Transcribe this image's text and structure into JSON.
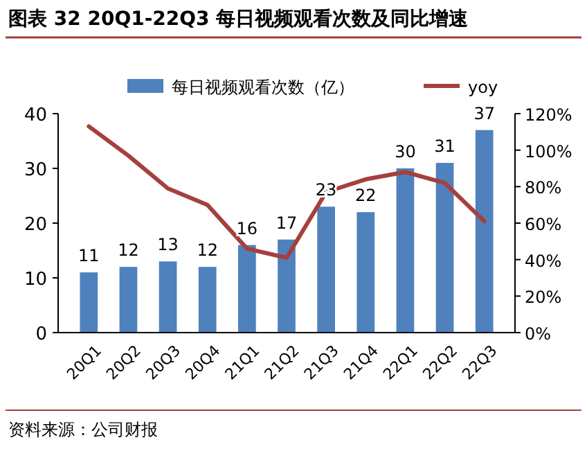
{
  "chart_data": {
    "type": "bar",
    "title": "图表 32 20Q1-22Q3 每日视频观看次数及同比增速",
    "categories": [
      "20Q1",
      "20Q2",
      "20Q3",
      "20Q4",
      "21Q1",
      "21Q2",
      "21Q3",
      "21Q4",
      "22Q1",
      "22Q2",
      "22Q3"
    ],
    "series": [
      {
        "name": "每日视频观看次数（亿）",
        "color": "#4f81bd",
        "values": [
          11,
          12,
          13,
          12,
          16,
          17,
          23,
          22,
          30,
          31,
          37
        ],
        "value_labels": [
          "11",
          "12",
          "13",
          "12",
          "16",
          "17",
          "23",
          "22",
          "30",
          "31",
          "37"
        ]
      },
      {
        "name": "yoy",
        "type": "line",
        "axis": "y2",
        "color": "#a5403d",
        "values": [
          113,
          97,
          79,
          70,
          46,
          41,
          77,
          84,
          88,
          82,
          61
        ]
      }
    ],
    "ylim": [
      0,
      40
    ],
    "yticks": [
      0,
      10,
      20,
      30,
      40
    ],
    "y2lim": [
      0,
      120
    ],
    "y2ticks": [
      {
        "value": 0,
        "label": "0%"
      },
      {
        "value": 20,
        "label": "20%"
      },
      {
        "value": 40,
        "label": "40%"
      },
      {
        "value": 60,
        "label": "60%"
      },
      {
        "value": 80,
        "label": "80%"
      },
      {
        "value": 100,
        "label": "100%"
      },
      {
        "value": 120,
        "label": "120%"
      }
    ],
    "legend": "top",
    "line_style": "solid",
    "marker": "none",
    "annotations": [
      "资料来源：公司财报"
    ]
  }
}
